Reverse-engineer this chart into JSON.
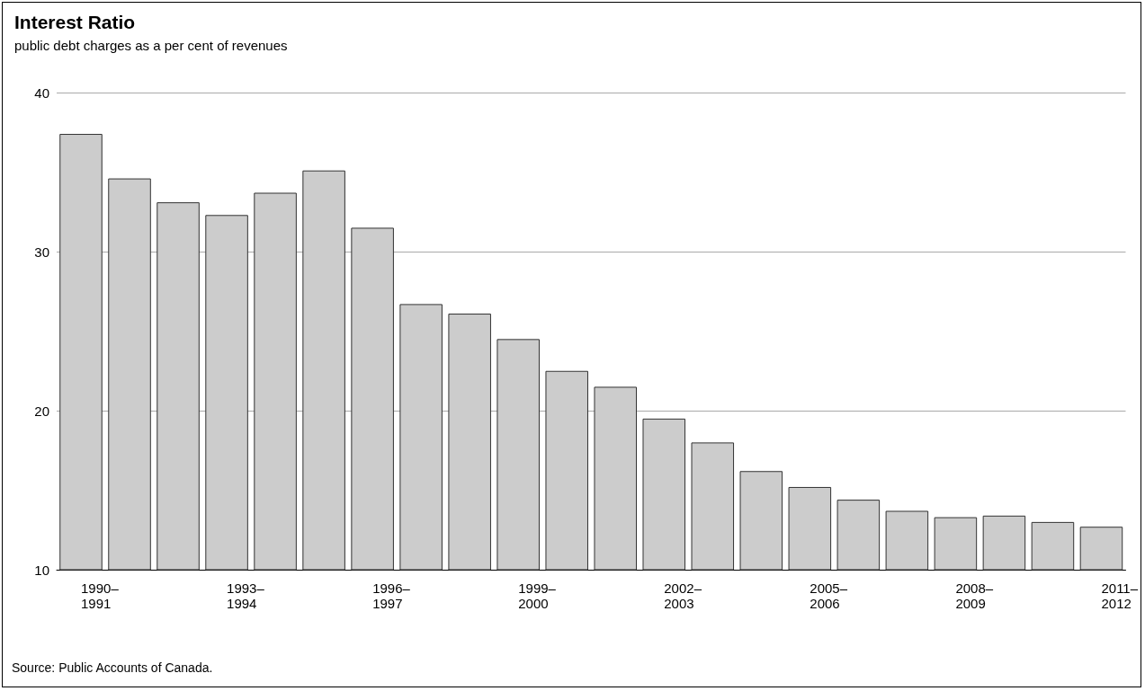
{
  "chart_data": {
    "type": "bar",
    "title": "Interest Ratio",
    "subtitle": "public debt charges as a per cent of revenues",
    "categories": [
      "1990–\n1991",
      null,
      null,
      "1993–\n1994",
      null,
      null,
      "1996–\n1997",
      null,
      null,
      "1999–\n2000",
      null,
      null,
      "2002–\n2003",
      null,
      null,
      "2005–\n2006",
      null,
      null,
      "2008–\n2009",
      null,
      null,
      "2011–\n2012"
    ],
    "values": [
      37.4,
      34.6,
      33.1,
      32.3,
      33.7,
      35.1,
      31.5,
      26.7,
      26.1,
      24.5,
      22.5,
      21.5,
      19.5,
      18.0,
      16.2,
      15.2,
      14.4,
      13.7,
      13.3,
      13.4,
      13.0,
      12.7
    ],
    "color": "#cccccc",
    "ylim": [
      10,
      40
    ],
    "yticks": [
      10,
      20,
      30,
      40
    ],
    "grid": "y",
    "annotations": [
      "Source: Public Accounts of Canada."
    ]
  }
}
